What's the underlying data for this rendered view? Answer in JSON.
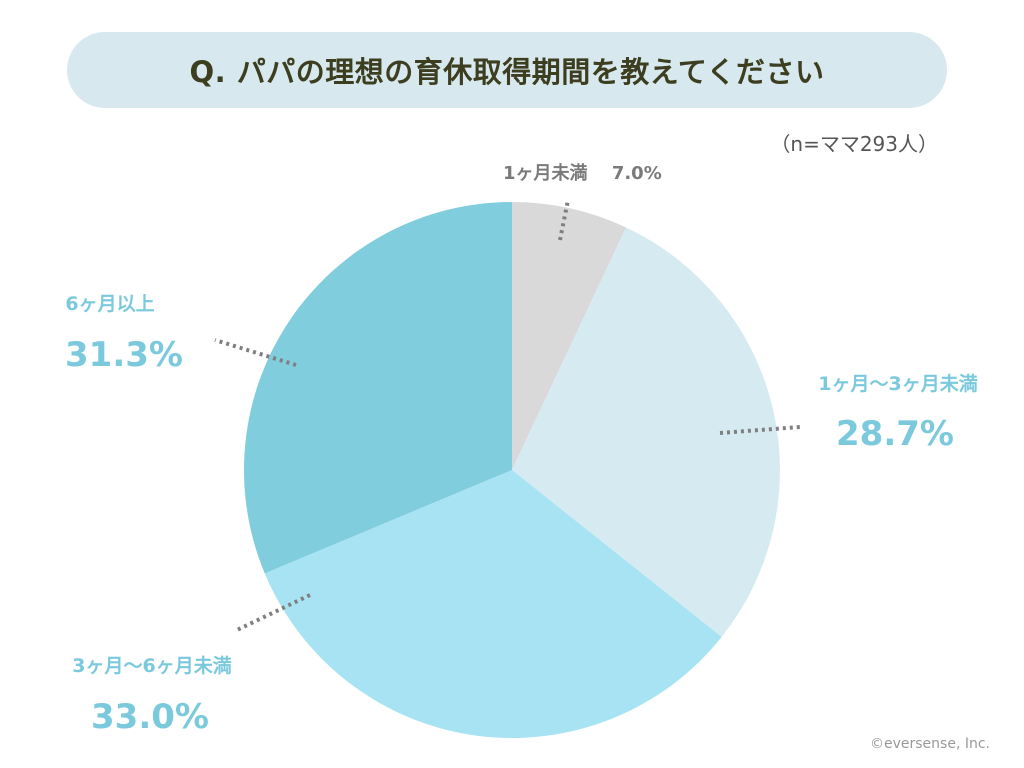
{
  "header": {
    "title": "Q. パパの理想の育休取得期間を教えてください"
  },
  "sample_size": "（n=ママ293人）",
  "copyright": "©eversense, Inc.",
  "colors": {
    "banner_bg": "#d7e9ee",
    "label_blue": "#7bc9dc",
    "label_gray": "#7a7a7a"
  },
  "chart_data": {
    "type": "pie",
    "title": "Q. パパの理想の育休取得期間を教えてください",
    "start_angle_deg": 0,
    "direction": "clockwise",
    "slices": [
      {
        "label": "1ヶ月未満",
        "value": 7.0,
        "value_text": "7.0%",
        "color": "#d9d9d9",
        "label_color": "#7a7a7a"
      },
      {
        "label": "1ヶ月〜3ヶ月未満",
        "value": 28.7,
        "value_text": "28.7%",
        "color": "#d6ebf1",
        "label_color": "#7bc9dc"
      },
      {
        "label": "3ヶ月〜6ヶ月未満",
        "value": 33.0,
        "value_text": "33.0%",
        "color": "#a7e3f3",
        "label_color": "#7bc9dc"
      },
      {
        "label": "6ヶ月以上",
        "value": 31.3,
        "value_text": "31.3%",
        "color": "#80cddd",
        "label_color": "#7bc9dc"
      }
    ]
  }
}
